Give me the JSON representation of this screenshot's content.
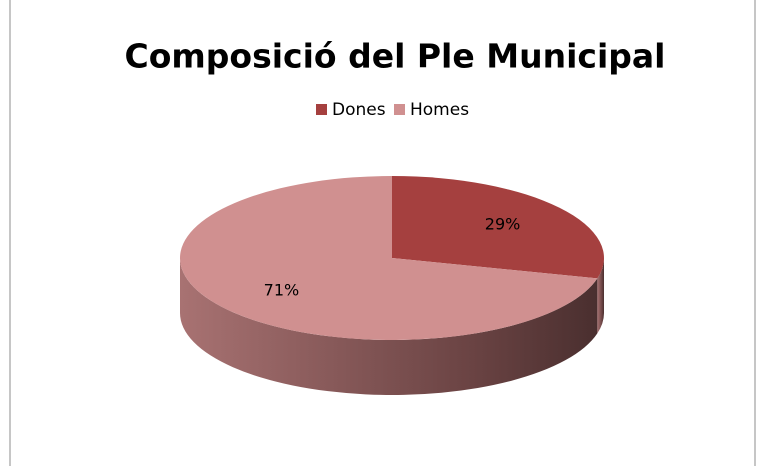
{
  "chart_data": {
    "type": "pie",
    "title": "Composició del Ple Municipal",
    "categories": [
      "Dones",
      "Homes"
    ],
    "values": [
      29,
      71
    ],
    "value_labels": [
      "29%",
      "71%"
    ],
    "colors": [
      "#a5403f",
      "#d09090"
    ],
    "legend": "top"
  }
}
